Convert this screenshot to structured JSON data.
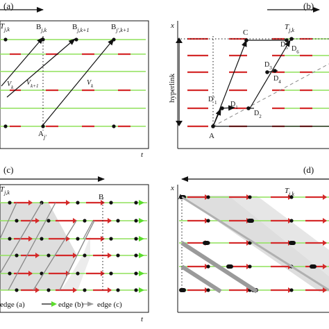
{
  "panels": [
    {
      "tag": "(a)",
      "axis_t": "t",
      "T_main": "T",
      "T_sub": "j,k",
      "labels": [
        {
          "main": "B",
          "sub": "j,k"
        },
        {
          "main": "B",
          "sub": "j,k+1"
        },
        {
          "main": "B",
          "sub": "j',k+1"
        },
        {
          "main": "V",
          "sub": "k"
        },
        {
          "main": "V",
          "sub": "k+1"
        },
        {
          "main": "V",
          "sub": "k"
        },
        {
          "main": "A",
          "sub": "j'"
        }
      ]
    },
    {
      "tag": "(b)",
      "axis_x": "x",
      "T_main": "T",
      "T_sub": "j,k",
      "hyperlink": "hyperlink",
      "labels": [
        {
          "main": "C",
          "sub": ""
        },
        {
          "main": "D",
          "sub": "5"
        },
        {
          "main": "D",
          "sub": "6"
        },
        {
          "main": "D",
          "sub": "3"
        },
        {
          "main": "D",
          "sub": "4"
        },
        {
          "main": "D'",
          "sub": "1"
        },
        {
          "main": "D",
          "sub": "1"
        },
        {
          "main": "D",
          "sub": "2"
        },
        {
          "main": "A",
          "sub": ""
        }
      ]
    },
    {
      "tag": "(c)",
      "axis_t": "t",
      "T_main": "T",
      "T_sub": "j,k",
      "labels": [
        {
          "main": "B",
          "sub": ""
        }
      ],
      "legend": [
        "edge (a)",
        "edge (b)",
        "edge (c)"
      ]
    },
    {
      "tag": "(d)",
      "axis_x": "x",
      "T_main": "T",
      "T_sub": "j,k",
      "labels": [
        {
          "main": "A",
          "sub": ""
        }
      ]
    }
  ],
  "colors": {
    "green": "#8fe05a",
    "red": "#d42a2a",
    "black": "#111111",
    "gray": "#9a9a9a",
    "shade": "#dcdcdc"
  }
}
